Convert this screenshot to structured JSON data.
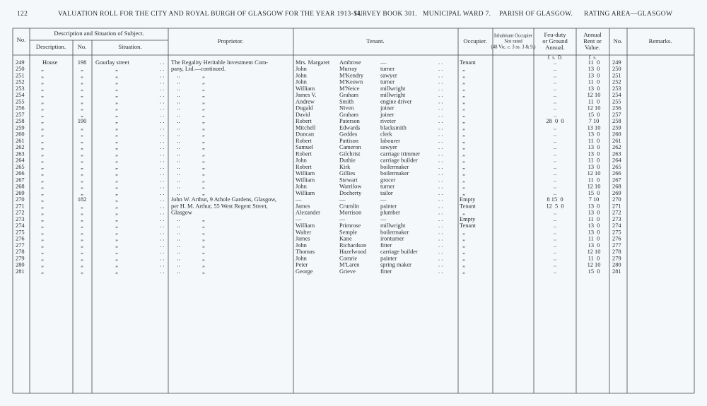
{
  "header": {
    "page": "122",
    "title": "VALUATION ROLL FOR THE CITY AND ROYAL BURGH OF GLASGOW FOR THE YEAR 1913-14.",
    "survey": "SURVEY BOOK 301.",
    "ward": "MUNICIPAL WARD 7.",
    "parish": "PARISH OF GLASGOW.",
    "area": "RATING AREA—GLASGOW"
  },
  "table": {
    "columns": {
      "no": "No.",
      "subject": "Description and Situation of Subject.",
      "description": "Description.",
      "number": "No.",
      "situation": "Situation.",
      "proprietor": "Proprietor.",
      "tenant": "Tenant.",
      "occupier": "Occupier.",
      "inhabitant": [
        "Inhabitant Occupier",
        "Not rated",
        "(48 Vic. c. 3 ss. 3 & 9.)"
      ],
      "feu": [
        "Feu-duty",
        "or Ground",
        "Annual."
      ],
      "rent": [
        "Annual",
        "Rent or",
        "Value."
      ],
      "no2": "No.",
      "remarks": "Remarks.",
      "feu_units": "£  s.  D.",
      "rent_units": "£  s."
    },
    "rows": [
      [
        "249",
        "House",
        "198",
        "Gourlay street",
        "The Regality Heritable Investment Com-",
        "Mrs. Margaret",
        "Ambrose",
        "—",
        "Tenant",
        "..",
        "11  0",
        "249"
      ],
      [
        "250",
        "„",
        "„",
        "„",
        "pany, Ltd.—continued.",
        "John",
        "Murray",
        "turner",
        "„",
        "..",
        "13  0",
        "250"
      ],
      [
        "251",
        "„",
        "„",
        "„",
        "    ..               „",
        "John",
        "M'Kendry",
        "sawyer",
        "„",
        "..",
        "13  0",
        "251"
      ],
      [
        "252",
        "„",
        "„",
        "„",
        "    ..               „",
        "John",
        "M'Keown",
        "turner",
        "„",
        "..",
        "11  0",
        "252"
      ],
      [
        "253",
        "„",
        "„",
        "„",
        "    ..               „",
        "William",
        "M'Neice",
        "millwright",
        "„",
        "..",
        "13  0",
        "253"
      ],
      [
        "254",
        "„",
        "„",
        "„",
        "    ..               „",
        "James V.",
        "Graham",
        "millwright",
        "„",
        "..",
        "12 10",
        "254"
      ],
      [
        "255",
        "„",
        "„",
        "„",
        "    ..               „",
        "Andrew",
        "Smith",
        "engine driver",
        "„",
        "..",
        "11  0",
        "255"
      ],
      [
        "256",
        "„",
        "„",
        "„",
        "    ..               „",
        "Dugald",
        "Niven",
        "joiner",
        "„",
        "..",
        "12 10",
        "256"
      ],
      [
        "257",
        "„",
        "„",
        "„",
        "    ..               „",
        "David",
        "Graham",
        "joiner",
        "„",
        "..",
        "15  0",
        "257"
      ],
      [
        "258",
        "„",
        "190",
        "„",
        "    ..               „",
        "Robert",
        "Paterson",
        "riveter",
        "„",
        "28  0  0",
        "7 10",
        "258"
      ],
      [
        "259",
        "„",
        "„",
        "„",
        "    ..               „",
        "Mitchell",
        "Edwards",
        "blacksmith",
        "„",
        "..",
        "13 10",
        "259"
      ],
      [
        "260",
        "„",
        "„",
        "„",
        "    ..               „",
        "Duncan",
        "Geddes",
        "clerk",
        "„",
        "..",
        "13  0",
        "260"
      ],
      [
        "261",
        "„",
        "„",
        "„",
        "    ..               „",
        "Robert",
        "Pattison",
        "labourer",
        "„",
        "..",
        "11  0",
        "261"
      ],
      [
        "262",
        "„",
        "„",
        "„",
        "    ..               „",
        "Samuel",
        "Cameron",
        "sawyer",
        "„",
        "..",
        "13  0",
        "262"
      ],
      [
        "263",
        "„",
        "„",
        "„",
        "    ..               „",
        "Robert",
        "Gilchrist",
        "carriage trimmer",
        "„",
        "..",
        "13  0",
        "263"
      ],
      [
        "264",
        "„",
        "„",
        "„",
        "    ..               „",
        "John",
        "Duthie",
        "carriage builder",
        "„",
        "..",
        "11  0",
        "264"
      ],
      [
        "265",
        "„",
        "„",
        "„",
        "    ..               „",
        "Robert",
        "Kirk",
        "boilermaker",
        "„",
        "..",
        "13  0",
        "265"
      ],
      [
        "266",
        "„",
        "„",
        "„",
        "    ..               „",
        "William",
        "Gillies",
        "boilermaker",
        "„",
        "..",
        "12 10",
        "266"
      ],
      [
        "267",
        "„",
        "„",
        "„",
        "    ..               „",
        "William",
        "Stewart",
        "grocer",
        "„",
        "..",
        "11  0",
        "267"
      ],
      [
        "268",
        "„",
        "„",
        "„",
        "    ..               „",
        "John",
        "Warrilow",
        "turner",
        "„",
        "..",
        "12 10",
        "268"
      ],
      [
        "269",
        "„",
        "„",
        "„",
        "    ..               „",
        "William",
        "Docherty",
        "tailor",
        "„",
        "..",
        "15  0",
        "269"
      ],
      [
        "270",
        "„",
        "182",
        "„",
        "John W. Arthur, 9 Athole Gardens, Glasgow,",
        "—",
        "—",
        "—",
        "Empty",
        "8 15  0",
        "7 10",
        "270"
      ],
      [
        "271",
        "„",
        "„",
        "„",
        "per H. M. Arthur, 55 West Regent Street,",
        "James",
        "Crumlin",
        "painter",
        "Tenant",
        "12  5  0",
        "13  0",
        "271"
      ],
      [
        "272",
        "„",
        "„",
        "„",
        "Glasgow",
        "Alexander",
        "Morrison",
        "plumber",
        "„",
        "..",
        "13  0",
        "272"
      ],
      [
        "273",
        "„",
        "„",
        "„",
        "    ..               „",
        "—",
        "—",
        "—",
        "Empty",
        "..",
        "11  0",
        "273"
      ],
      [
        "274",
        "„",
        "„",
        "„",
        "    ..               „",
        "William",
        "Primrose",
        "millwright",
        "Tenant",
        "..",
        "13  0",
        "274"
      ],
      [
        "275",
        "„",
        "„",
        "„",
        "    ..               „",
        "Walter",
        "Semple",
        "boilermaker",
        "„",
        "..",
        "13  0",
        "275"
      ],
      [
        "276",
        "„",
        "„",
        "„",
        "    ..               „",
        "James",
        "Kane",
        "ironturner",
        "„",
        "..",
        "11  0",
        "276"
      ],
      [
        "277",
        "„",
        "„",
        "„",
        "    ..               „",
        "John",
        "Richardson",
        "fitter",
        "„",
        "..",
        "13  0",
        "277"
      ],
      [
        "278",
        "„",
        "„",
        "„",
        "    ..               „",
        "Thomas",
        "Hazelwood",
        "carriage builder",
        "„",
        "..",
        "12 10",
        "278"
      ],
      [
        "279",
        "„",
        "„",
        "„",
        "    ..               „",
        "John",
        "Comrie",
        "painter",
        "„",
        "..",
        "11  0",
        "279"
      ],
      [
        "280",
        "„",
        "„",
        "„",
        "    ..               „",
        "Peter",
        "M'Laren",
        "spring maker",
        "„",
        "..",
        "12 10",
        "280"
      ],
      [
        "281",
        "„",
        "„",
        "„",
        "    ..               „",
        "George",
        "Grieve",
        "fitter",
        "„",
        "..",
        "15  0",
        "281"
      ]
    ]
  }
}
